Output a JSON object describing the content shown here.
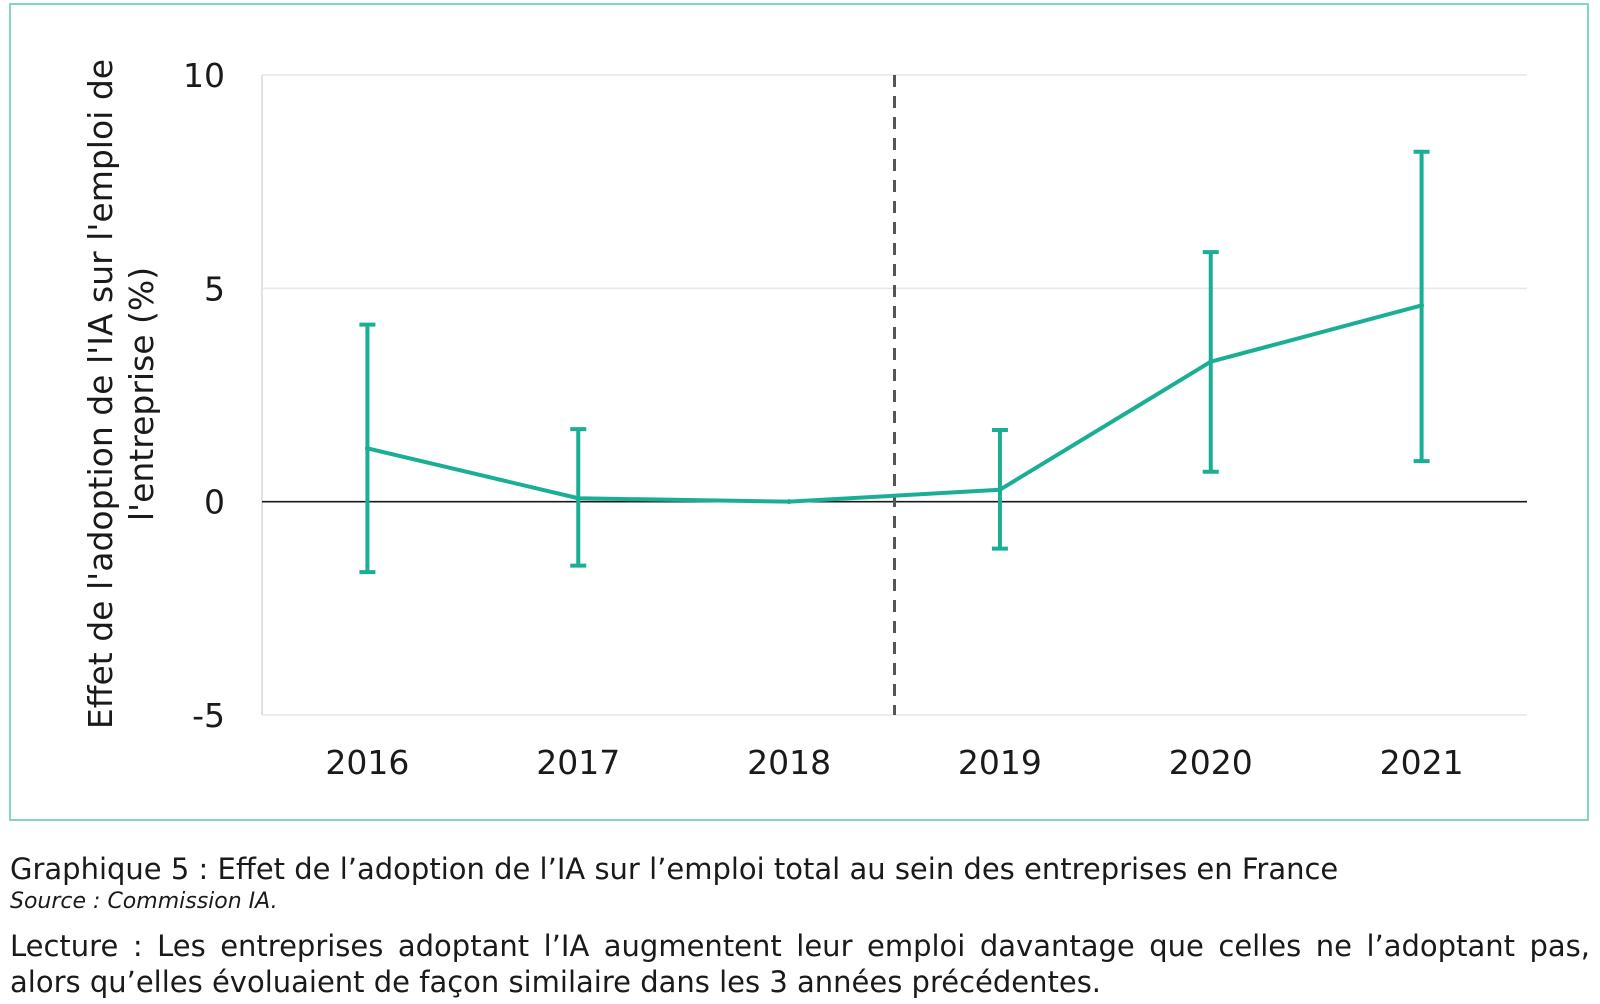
{
  "chart_data": {
    "type": "line",
    "categories": [
      "2016",
      "2017",
      "2018",
      "2019",
      "2020",
      "2021"
    ],
    "series": [
      {
        "name": "Effet de l'adoption de l'IA",
        "values": [
          1.25,
          0.08,
          0.0,
          0.28,
          3.28,
          4.6
        ],
        "ci_low": [
          -1.65,
          -1.5,
          null,
          -1.1,
          0.7,
          0.95
        ],
        "ci_high": [
          4.15,
          1.7,
          null,
          1.68,
          5.85,
          8.2
        ]
      }
    ],
    "ylabel": "Effet de l'adoption de l'IA sur l'emploi de l'entreprise (%)",
    "ylabel_lines": [
      "Effet de l'adoption de l'IA sur l'emploi de",
      "l'entreprise (%)"
    ],
    "ylim": [
      -5,
      10
    ],
    "yticks": [
      10,
      5,
      0,
      -5
    ],
    "ytick_labels": [
      "10",
      "5",
      "0",
      "-5"
    ],
    "reference_line_after": "2018",
    "grid": true,
    "colors": {
      "series": "#1aaf94",
      "frame": "#7fd6c4",
      "grid": "#e6e6e6",
      "reference": "#555555",
      "zero": "#1a1a1a"
    }
  },
  "caption": {
    "title": "Graphique 5 : Effet de l’adoption de l’IA sur l’emploi total au sein des entreprises en France",
    "source": "Source : Commission IA.",
    "reading": "Lecture : Les entreprises adoptant l’IA augmentent leur emploi davantage que celles ne l’adoptant pas, alors qu’elles évoluaient de façon similaire dans les 3 années précédentes."
  }
}
